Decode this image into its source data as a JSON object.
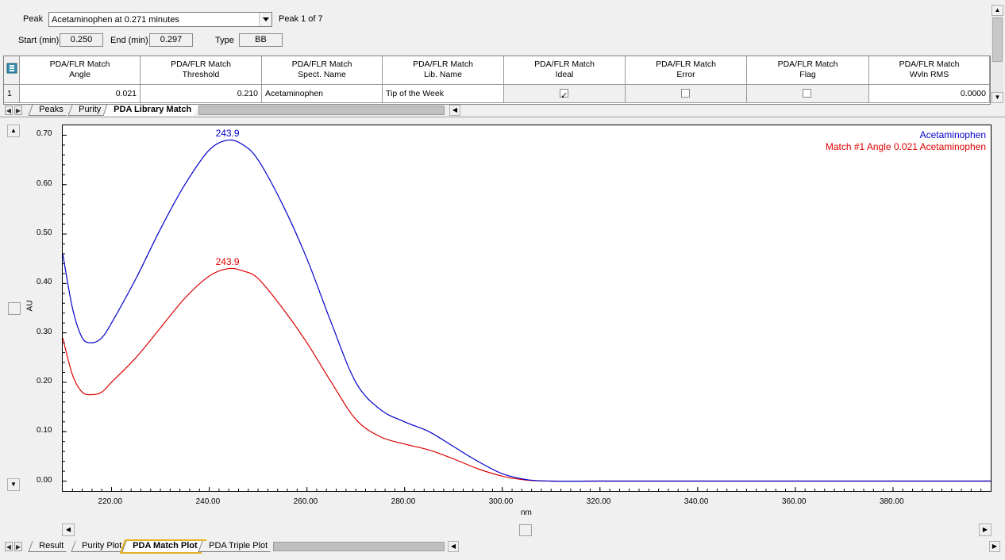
{
  "peak_selector": {
    "label": "Peak",
    "value": "Acetaminophen at 0.271 minutes",
    "peak_count": "Peak 1 of 7"
  },
  "peak_info": {
    "start_label": "Start (min)",
    "start_value": "0.250",
    "end_label": "End (min)",
    "end_value": "0.297",
    "type_label": "Type",
    "type_value": "BB"
  },
  "grid": {
    "columns": [
      {
        "line1": "PDA/FLR Match",
        "line2": "Angle"
      },
      {
        "line1": "PDA/FLR Match",
        "line2": "Threshold"
      },
      {
        "line1": "PDA/FLR Match",
        "line2": "Spect. Name"
      },
      {
        "line1": "PDA/FLR Match",
        "line2": "Lib. Name"
      },
      {
        "line1": "PDA/FLR Match",
        "line2": "Ideal"
      },
      {
        "line1": "PDA/FLR Match",
        "line2": "Error"
      },
      {
        "line1": "PDA/FLR Match",
        "line2": "Flag"
      },
      {
        "line1": "PDA/FLR Match",
        "line2": "Wvln RMS"
      }
    ],
    "rows": [
      {
        "index": "1",
        "angle": "0.021",
        "threshold": "0.210",
        "spect_name": "Acetaminophen",
        "lib_name": "Tip of the Week",
        "ideal": true,
        "error": false,
        "flag": false,
        "wvln_rms": "0.0000"
      }
    ]
  },
  "top_tabs": [
    "Peaks",
    "Purity",
    "PDA Library Match"
  ],
  "bottom_tabs": [
    "Result",
    "Purity Plot",
    "PDA Match Plot",
    "PDA Triple Plot"
  ],
  "chart_data": {
    "type": "line",
    "xlabel": "nm",
    "ylabel": "AU",
    "xlim": [
      210,
      400
    ],
    "ylim": [
      -0.02,
      0.72
    ],
    "x_ticks": [
      "220.00",
      "240.00",
      "260.00",
      "280.00",
      "300.00",
      "320.00",
      "340.00",
      "360.00",
      "380.00"
    ],
    "y_ticks": [
      "0.00",
      "0.10",
      "0.20",
      "0.30",
      "0.40",
      "0.50",
      "0.60",
      "0.70"
    ],
    "series": [
      {
        "name": "Acetaminophen",
        "color": "#0000cc",
        "peak_label": "243.9",
        "peak_x": 243.9,
        "peak_y": 0.69,
        "x": [
          210,
          212,
          214,
          216,
          218,
          220,
          225,
          230,
          235,
          240,
          243.9,
          247,
          250,
          255,
          260,
          265,
          270,
          275,
          280,
          285,
          290,
          295,
          300,
          305,
          310,
          320,
          340,
          360,
          380,
          400
        ],
        "y": [
          0.46,
          0.35,
          0.29,
          0.28,
          0.29,
          0.32,
          0.41,
          0.51,
          0.6,
          0.67,
          0.69,
          0.68,
          0.65,
          0.56,
          0.45,
          0.32,
          0.2,
          0.145,
          0.12,
          0.1,
          0.07,
          0.04,
          0.015,
          0.003,
          0.0,
          0.0,
          0.0,
          0.0,
          0.0,
          0.0
        ]
      },
      {
        "name": "Match #1 Angle 0.021 Acetaminophen",
        "color": "#dd0000",
        "peak_label": "243.9",
        "peak_x": 243.9,
        "peak_y": 0.43,
        "x": [
          210,
          212,
          214,
          216,
          218,
          220,
          225,
          230,
          235,
          240,
          243.9,
          247,
          250,
          255,
          260,
          265,
          270,
          275,
          280,
          285,
          290,
          295,
          300,
          305,
          310,
          320,
          340,
          360,
          380,
          400
        ],
        "y": [
          0.29,
          0.215,
          0.18,
          0.175,
          0.18,
          0.2,
          0.25,
          0.31,
          0.37,
          0.415,
          0.43,
          0.425,
          0.41,
          0.35,
          0.28,
          0.2,
          0.125,
          0.09,
          0.075,
          0.063,
          0.045,
          0.025,
          0.01,
          0.002,
          0.0,
          0.0,
          0.0,
          0.0,
          0.0,
          0.0
        ]
      }
    ]
  }
}
